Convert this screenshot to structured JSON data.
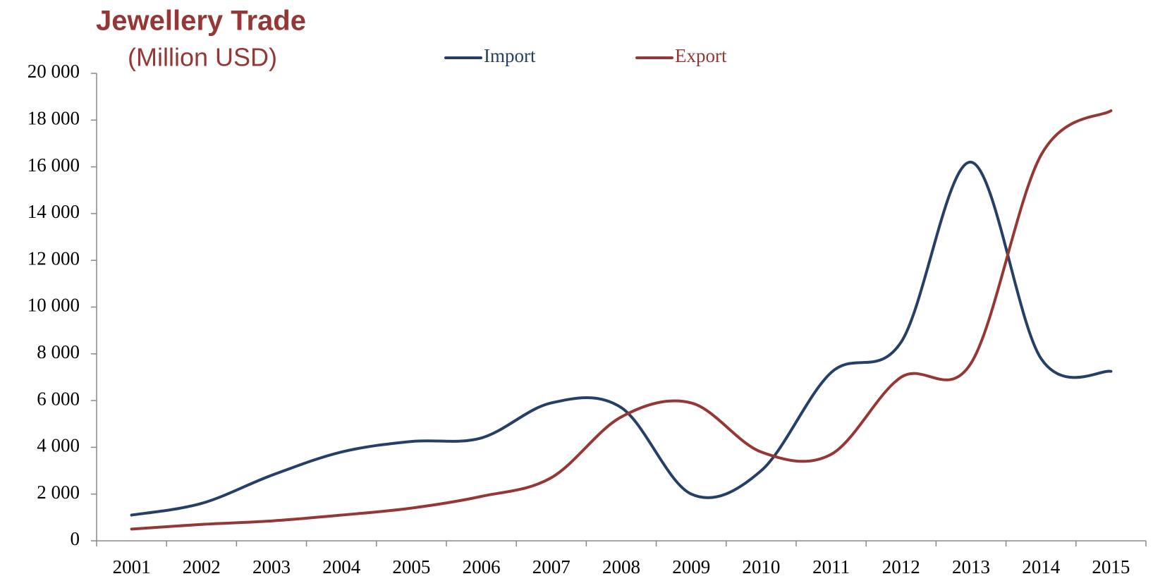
{
  "chart_data": {
    "type": "line",
    "title": "Jewellery Trade",
    "subtitle": "(Million USD)",
    "categories": [
      "2001",
      "2002",
      "2003",
      "2004",
      "2005",
      "2006",
      "2007",
      "2008",
      "2009",
      "2010",
      "2011",
      "2012",
      "2013",
      "2014",
      "2015"
    ],
    "series": [
      {
        "name": "Import",
        "color": "#253f66",
        "values": [
          1100,
          1600,
          2800,
          3800,
          4250,
          4400,
          5900,
          5700,
          2000,
          3000,
          7200,
          8500,
          16200,
          7800,
          7250
        ]
      },
      {
        "name": "Export",
        "color": "#953735",
        "values": [
          500,
          700,
          850,
          1100,
          1400,
          1900,
          2700,
          5300,
          5900,
          3800,
          3700,
          7000,
          7600,
          16500,
          18400
        ]
      }
    ],
    "ylim": [
      0,
      20000
    ],
    "yticks": [
      0,
      {
        "value": 2000,
        "label": "2 000"
      },
      {
        "value": 4000,
        "label": "4 000"
      },
      {
        "value": 6000,
        "label": "6 000"
      },
      {
        "value": 8000,
        "label": "8 000"
      },
      {
        "value": 10000,
        "label": "10 000"
      },
      {
        "value": 12000,
        "label": "12 000"
      },
      {
        "value": 14000,
        "label": "14 000"
      },
      {
        "value": 16000,
        "label": "16 000"
      },
      {
        "value": 18000,
        "label": "18 000"
      },
      {
        "value": 20000,
        "label": "20 000"
      }
    ],
    "legend": "top",
    "grid": false
  }
}
